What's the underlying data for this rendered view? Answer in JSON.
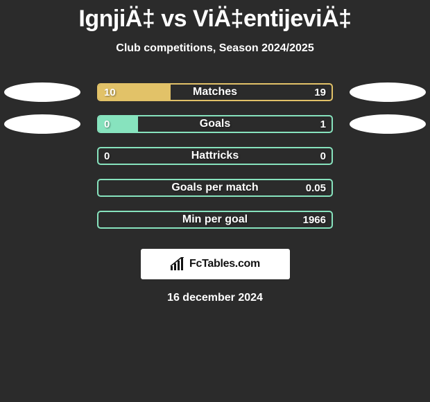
{
  "title": "IgnjiÄ‡ vs ViÄ‡entijeviÄ‡",
  "subtitle": "Club competitions, Season 2024/2025",
  "date": "16 december 2024",
  "badge_text": "FcTables.com",
  "colors": {
    "background": "#2b2b2b",
    "bars": [
      "#e2c268",
      "#87e3be",
      "#87e3be",
      "#87e3be",
      "#87e3be"
    ],
    "oval": "#ffffff",
    "badge_bg": "#ffffff"
  },
  "rows": [
    {
      "label": "Matches",
      "left": "10",
      "right": "19",
      "fill_pct": 31,
      "show_ovals": true
    },
    {
      "label": "Goals",
      "left": "0",
      "right": "1",
      "fill_pct": 17,
      "show_ovals": true
    },
    {
      "label": "Hattricks",
      "left": "0",
      "right": "0",
      "fill_pct": 0,
      "show_ovals": false
    },
    {
      "label": "Goals per match",
      "left": "",
      "right": "0.05",
      "fill_pct": 0,
      "show_ovals": false
    },
    {
      "label": "Min per goal",
      "left": "",
      "right": "1966",
      "fill_pct": 0,
      "show_ovals": false
    }
  ]
}
